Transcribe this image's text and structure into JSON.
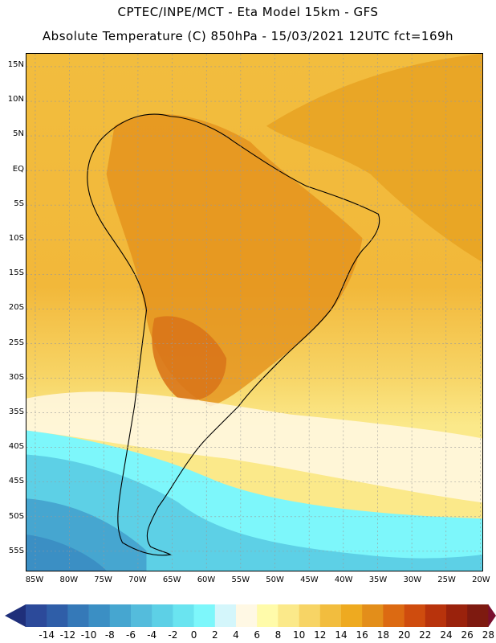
{
  "header": {
    "line1": "CPTEC/INPE/MCT -  Eta Model 15km - GFS",
    "line2": "Absolute Temperature (C) 850hPa - 15/03/2021 12UTC fct=169h"
  },
  "map": {
    "lat_labels": [
      "15N",
      "10N",
      "5N",
      "EQ",
      "5S",
      "10S",
      "15S",
      "20S",
      "25S",
      "30S",
      "35S",
      "40S",
      "45S",
      "50S",
      "55S"
    ],
    "lon_labels": [
      "85W",
      "80W",
      "75W",
      "70W",
      "65W",
      "60W",
      "55W",
      "50W",
      "45W",
      "40W",
      "35W",
      "30W",
      "25W",
      "20W"
    ]
  },
  "colorbar": {
    "labels": [
      "-14",
      "-12",
      "-10",
      "-8",
      "-6",
      "-4",
      "-2",
      "0",
      "2",
      "4",
      "6",
      "8",
      "10",
      "12",
      "14",
      "16",
      "18",
      "20",
      "22",
      "24",
      "26",
      "28"
    ],
    "colors": [
      "#2c4a9a",
      "#2f5ea8",
      "#3579b8",
      "#3b8fc4",
      "#46a6d0",
      "#54bcdc",
      "#5dd0e6",
      "#6ae4f0",
      "#7df7fb",
      "#d4f6fb",
      "#fff8e4",
      "#fffbaa",
      "#fbe98a",
      "#f7d465",
      "#f2bd3e",
      "#eeaa20",
      "#e38e1a",
      "#dc6a12",
      "#cf4c0e",
      "#b8330c",
      "#9a220c",
      "#7e1a10"
    ],
    "end_low": "#1f2f7a",
    "end_high": "#7a0f2e"
  }
}
